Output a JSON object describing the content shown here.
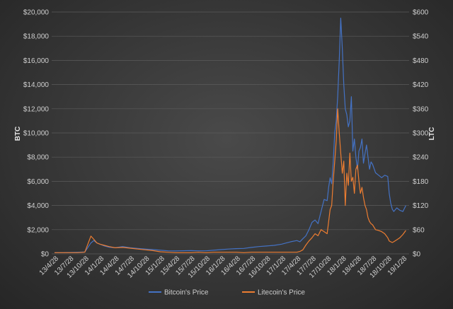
{
  "chart_data": {
    "type": "line",
    "ylabel_left": "BTC",
    "ylabel_right": "LTC",
    "ylim_left": [
      0,
      20000
    ],
    "ylim_right": [
      0,
      600
    ],
    "yticks_left": [
      "$0",
      "$2,000",
      "$4,000",
      "$6,000",
      "$8,000",
      "$10,000",
      "$12,000",
      "$14,000",
      "$16,000",
      "$18,000",
      "$20,000"
    ],
    "yticks_right": [
      "$0",
      "$60",
      "$120",
      "$180",
      "$240",
      "$300",
      "$360",
      "$420",
      "$480",
      "$540",
      "$600"
    ],
    "categories": [
      "13/4/28",
      "13/7/28",
      "13/10/28",
      "14/1/28",
      "14/4/28",
      "14/7/28",
      "14/10/28",
      "15/1/28",
      "15/4/28",
      "15/7/28",
      "15/10/28",
      "16/1/28",
      "16/4/28",
      "16/7/28",
      "16/10/28",
      "17/1/28",
      "17/4/28",
      "17/7/28",
      "17/10/28",
      "18/1/28",
      "18/4/28",
      "18/7/28",
      "18/10/28",
      "19/1/28"
    ],
    "legend_position": "bottom",
    "grid": true,
    "series": [
      {
        "name": "Bitcoin's Price",
        "axis": "left",
        "color": "#4472c4",
        "x": [
          0,
          0.5,
          1,
          1.5,
          2,
          2.4,
          2.6,
          2.8,
          3,
          3.3,
          3.6,
          4,
          4.5,
          5,
          5.5,
          6,
          6.5,
          7,
          7.5,
          8,
          8.5,
          9,
          9.5,
          10,
          10.5,
          11,
          11.5,
          12,
          12.5,
          13,
          13.5,
          14,
          14.5,
          15,
          15.3,
          15.6,
          16,
          16.2,
          16.4,
          16.6,
          16.8,
          17,
          17.2,
          17.4,
          17.6,
          17.8,
          18,
          18.1,
          18.2,
          18.3,
          18.4,
          18.5,
          18.6,
          18.7,
          18.8,
          18.9,
          19,
          19.1,
          19.2,
          19.3,
          19.4,
          19.5,
          19.6,
          19.7,
          19.8,
          19.9,
          20,
          20.1,
          20.2,
          20.3,
          20.4,
          20.5,
          20.6,
          20.7,
          20.8,
          20.9,
          21,
          21.2,
          21.4,
          21.6,
          21.8,
          22,
          22.1,
          22.2,
          22.3,
          22.4,
          22.6,
          22.8,
          23,
          23.2
        ],
        "values": [
          100,
          100,
          110,
          130,
          150,
          900,
          1100,
          900,
          800,
          650,
          550,
          500,
          600,
          500,
          450,
          400,
          350,
          300,
          250,
          240,
          260,
          270,
          250,
          250,
          300,
          350,
          400,
          430,
          450,
          530,
          600,
          650,
          700,
          800,
          900,
          1000,
          1100,
          1000,
          1250,
          1500,
          2000,
          2600,
          2800,
          2500,
          3500,
          4500,
          4400,
          5500,
          6300,
          5800,
          7500,
          10000,
          11000,
          13000,
          16000,
          19500,
          17000,
          14000,
          12000,
          11500,
          10500,
          11000,
          13000,
          8500,
          9500,
          8000,
          7000,
          8500,
          8800,
          9500,
          7500,
          8300,
          9000,
          8000,
          7000,
          7600,
          7400,
          6700,
          6500,
          6300,
          6500,
          6400,
          5000,
          4200,
          3700,
          3500,
          3800,
          3600,
          3500,
          4000
        ]
      },
      {
        "name": "Litecoin's Price",
        "axis": "right",
        "color": "#ed7d31",
        "x": [
          0,
          0.5,
          1,
          1.5,
          2,
          2.4,
          2.6,
          2.8,
          3,
          3.3,
          3.6,
          4,
          4.5,
          5,
          5.5,
          6,
          6.5,
          7,
          7.5,
          8,
          8.5,
          9,
          9.5,
          10,
          10.5,
          11,
          11.5,
          12,
          12.5,
          13,
          13.5,
          14,
          14.5,
          15,
          15.3,
          15.6,
          16,
          16.2,
          16.4,
          16.6,
          16.8,
          17,
          17.2,
          17.4,
          17.6,
          17.8,
          18,
          18.1,
          18.2,
          18.3,
          18.4,
          18.5,
          18.6,
          18.7,
          18.8,
          18.9,
          19,
          19.1,
          19.2,
          19.3,
          19.4,
          19.5,
          19.6,
          19.7,
          19.8,
          19.9,
          20,
          20.1,
          20.2,
          20.3,
          20.4,
          20.5,
          20.6,
          20.7,
          20.8,
          20.9,
          21,
          21.2,
          21.4,
          21.6,
          21.8,
          22,
          22.1,
          22.2,
          22.3,
          22.4,
          22.6,
          22.8,
          23,
          23.2
        ],
        "values": [
          3,
          3,
          3,
          3,
          4,
          44,
          36,
          27,
          24,
          21,
          18,
          15,
          16,
          14,
          12,
          10,
          8,
          5,
          4,
          3,
          3,
          3,
          4,
          3,
          4,
          4,
          4,
          4,
          3,
          4,
          4,
          4,
          4,
          4,
          4,
          4,
          4,
          6,
          10,
          22,
          32,
          40,
          50,
          45,
          60,
          55,
          50,
          80,
          110,
          120,
          180,
          230,
          280,
          360,
          300,
          250,
          200,
          230,
          120,
          200,
          170,
          250,
          180,
          190,
          150,
          210,
          220,
          180,
          150,
          165,
          140,
          120,
          110,
          90,
          80,
          75,
          72,
          60,
          58,
          55,
          50,
          40,
          32,
          30,
          28,
          30,
          35,
          40,
          48,
          58
        ]
      }
    ]
  }
}
